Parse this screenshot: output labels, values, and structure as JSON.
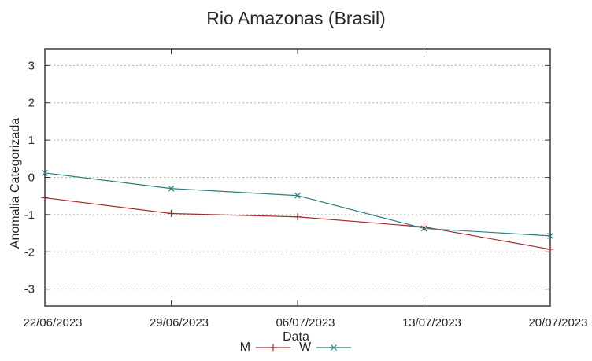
{
  "chart_data": {
    "type": "line",
    "title": "Rio Amazonas (Brasil)",
    "xlabel": "Data",
    "ylabel": "Anomalia Categorizada",
    "categories": [
      "22/06/2023",
      "29/06/2023",
      "06/07/2023",
      "13/07/2023",
      "20/07/2023"
    ],
    "series": [
      {
        "name": "M",
        "marker": "plus",
        "color": "#a62b2b",
        "values": [
          -0.55,
          -0.97,
          -1.06,
          -1.33,
          -1.93
        ]
      },
      {
        "name": "W",
        "marker": "cross",
        "color": "#2b7f7f",
        "values": [
          0.12,
          -0.3,
          -0.49,
          -1.37,
          -1.57
        ]
      }
    ],
    "yticks": [
      3,
      2,
      1,
      0,
      -1,
      -2,
      -3
    ],
    "ylim": [
      -3.45,
      3.45
    ],
    "grid": "horizontal-dashed",
    "legend_position": "bottom-center",
    "colors": {
      "text": "#262626",
      "border": "#3c3c3c",
      "grid": "#b0b0b0",
      "background": "#ffffff"
    }
  }
}
